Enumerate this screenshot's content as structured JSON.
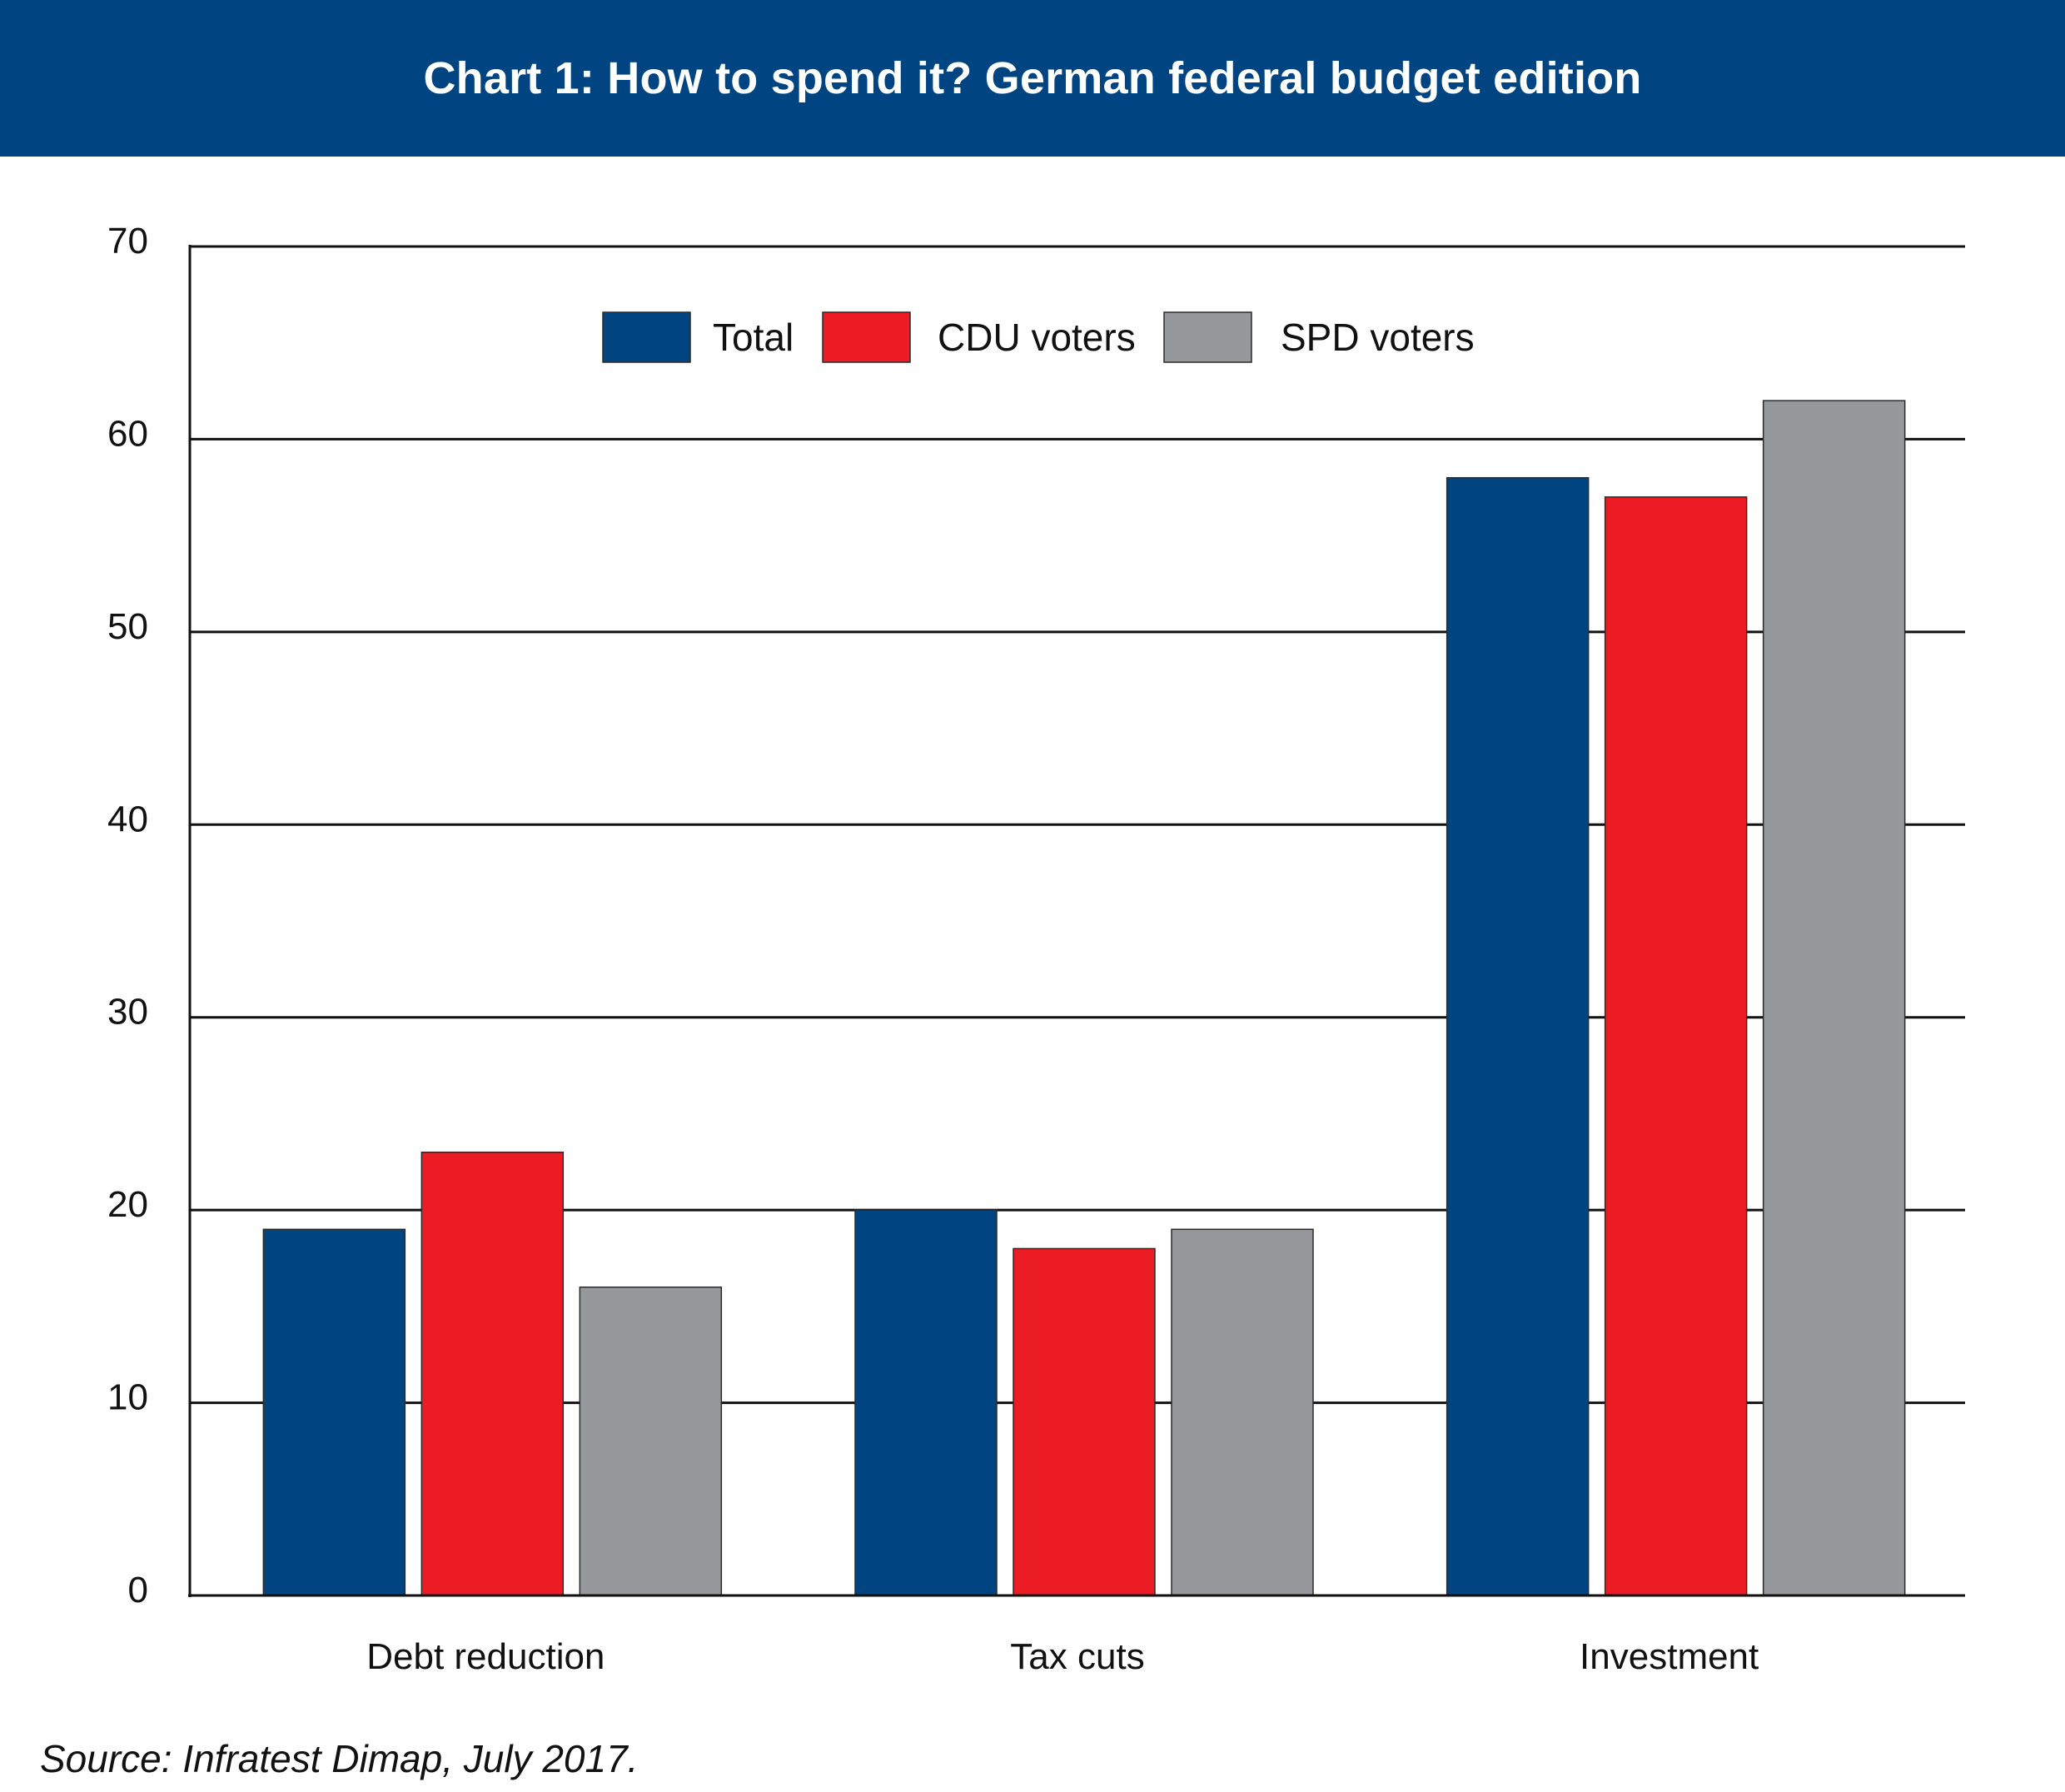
{
  "header": {
    "title": "Chart 1: How to spend it? German federal budget edition"
  },
  "chart_data": {
    "type": "bar",
    "title": "Chart 1: How to spend it? German federal budget edition",
    "xlabel": "",
    "ylabel": "",
    "ylim": [
      0,
      70
    ],
    "yticks": [
      0,
      10,
      20,
      30,
      40,
      50,
      60,
      70
    ],
    "grid": true,
    "legend_position": "top-center",
    "categories": [
      "Debt reduction",
      "Tax cuts",
      "Investment"
    ],
    "series": [
      {
        "name": "Total",
        "color": "#004481",
        "values": [
          19,
          20,
          58
        ]
      },
      {
        "name": "CDU voters",
        "color": "#ec1c24",
        "values": [
          23,
          18,
          57
        ]
      },
      {
        "name": "SPD voters",
        "color": "#97989c",
        "values": [
          16,
          19,
          62
        ]
      }
    ]
  },
  "source": {
    "text": "Source: Infratest Dimap, July 2017."
  }
}
